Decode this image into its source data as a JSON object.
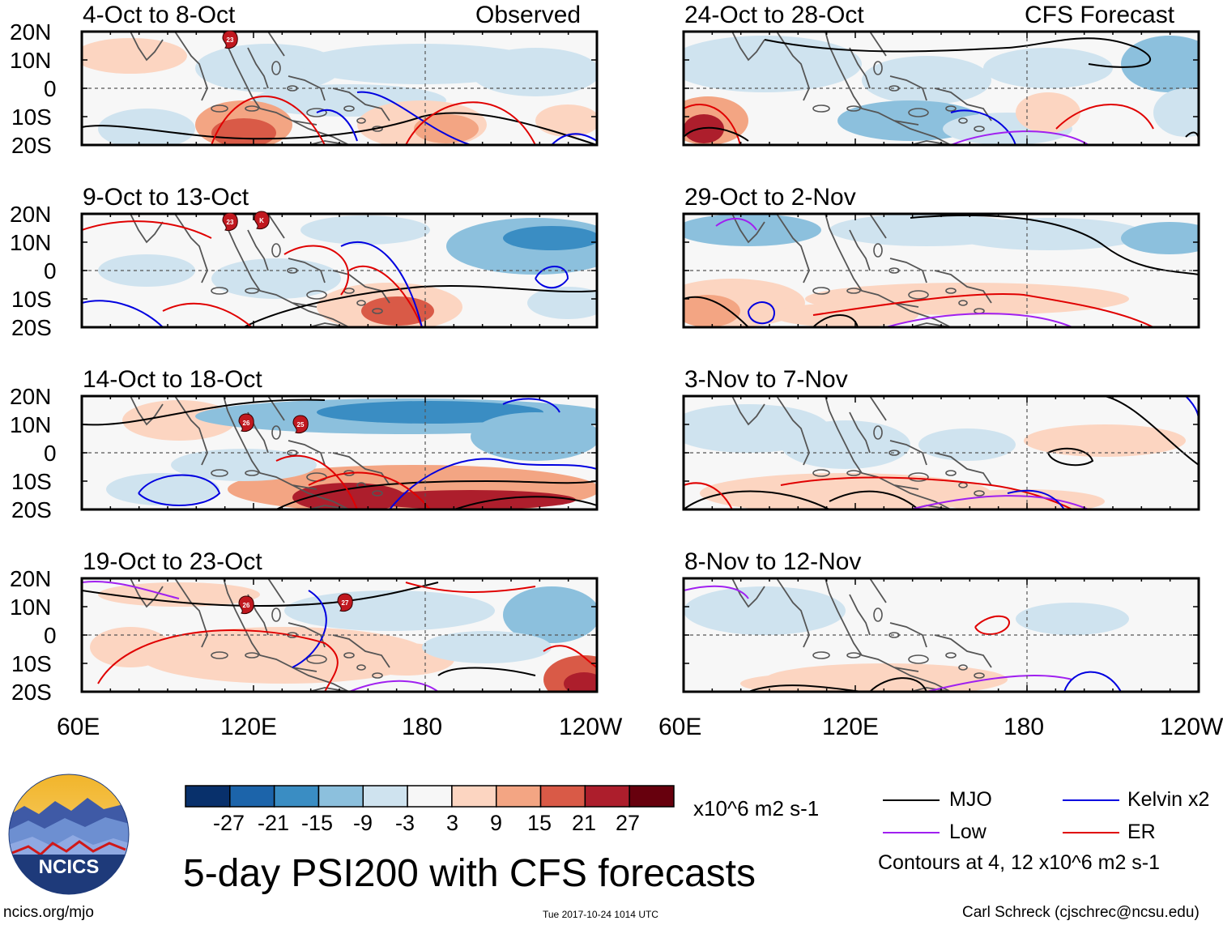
{
  "columns": [
    {
      "title": "Observed",
      "panels": [
        {
          "date_range": "4-Oct to 8-Oct",
          "storms": [
            "23"
          ]
        },
        {
          "date_range": "9-Oct to 13-Oct",
          "storms": [
            "23",
            "K"
          ]
        },
        {
          "date_range": "14-Oct to 18-Oct",
          "storms": [
            "26",
            "25"
          ]
        },
        {
          "date_range": "19-Oct to 23-Oct",
          "storms": [
            "26",
            "27"
          ]
        }
      ]
    },
    {
      "title": "CFS Forecast",
      "panels": [
        {
          "date_range": "24-Oct to 28-Oct",
          "storms": []
        },
        {
          "date_range": "29-Oct to 2-Nov",
          "storms": []
        },
        {
          "date_range": "3-Nov to 7-Nov",
          "storms": []
        },
        {
          "date_range": "8-Nov to 12-Nov",
          "storms": []
        }
      ]
    }
  ],
  "lat_ticks": [
    "20N",
    "10N",
    "0",
    "10S",
    "20S"
  ],
  "lon_ticks": [
    "60E",
    "120E",
    "180",
    "120W"
  ],
  "colorbar": {
    "colors": [
      "#08306b",
      "#1c64aa",
      "#3a8dc3",
      "#8cc0dd",
      "#cfe3ef",
      "#f7f7f7",
      "#fcd5c1",
      "#f3a583",
      "#d95a47",
      "#ad1e2c",
      "#67000d"
    ],
    "tick_labels": [
      "-27",
      "-21",
      "-15",
      "-9",
      "-3",
      "3",
      "9",
      "15",
      "21",
      "27"
    ],
    "units": "x10^6 m2 s-1"
  },
  "legend": {
    "items": [
      {
        "label": "MJO",
        "color": "#000000"
      },
      {
        "label": "Kelvin x2",
        "color": "#0000e0"
      },
      {
        "label": "Low",
        "color": "#a020f0"
      },
      {
        "label": "ER",
        "color": "#e00000"
      }
    ],
    "note": "Contours at 4, 12 x10^6 m2 s-1"
  },
  "title": "5-day PSI200 with CFS forecasts",
  "logo_text": "NCICS",
  "footer": {
    "website": "ncics.org/mjo",
    "timestamp": "Tue 2017-10-24 1014 UTC",
    "author": "Carl Schreck (cjschrec@ncsu.edu)"
  }
}
